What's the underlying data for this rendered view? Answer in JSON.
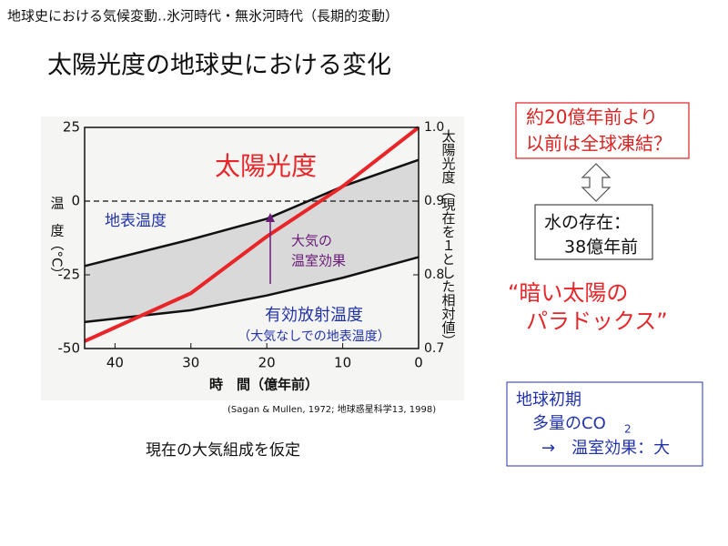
{
  "header": "地球史における気候変動‥氷河時代・無氷河時代（長期的変動）",
  "title": "太陽光度の地球史における変化",
  "chart_data": {
    "type": "line",
    "xlabel": "時　間（億年前）",
    "ylabel": "温　度（°C）",
    "y2label": "太陽光度（現在を１とした相対値）",
    "x": [
      44,
      30,
      20,
      10,
      0
    ],
    "xlim": [
      44,
      0
    ],
    "xticks": [
      40,
      30,
      20,
      10,
      0
    ],
    "ylim": [
      -50,
      25
    ],
    "yticks": [
      -50,
      -25,
      0,
      25
    ],
    "y2lim": [
      0.7,
      1.0
    ],
    "y2ticks": [
      0.7,
      0.8,
      0.9,
      {
        "value": 1,
        "label": "1.0"
      }
    ],
    "reference_line": 0,
    "series": [
      {
        "name": "地表温度",
        "color": "#111111",
        "values": [
          -22,
          -13,
          -6,
          5,
          14
        ]
      },
      {
        "name": "有効放射温度",
        "color": "#111111",
        "values": [
          -41,
          -37,
          -32,
          -26,
          -19
        ]
      },
      {
        "name": "太陽光度",
        "color": "#e8262a",
        "axis": "y2",
        "values": [
          0.71,
          0.775,
          0.852,
          0.92,
          1.0
        ]
      }
    ],
    "band_color": "#d9d9d9",
    "annotations": {
      "greenhouse": [
        "大気の",
        "温室効果"
      ],
      "no_atmosphere": "（大気なしでの地表温度）"
    },
    "source": "(Sagan & Mullen, 1972; 地球惑星科学13, 1998)"
  },
  "caption": "現在の大気組成を仮定",
  "snowball_box": [
    "約20億年前より",
    "以前は全球凍結？"
  ],
  "water_box": [
    "水の存在：",
    "38億年前"
  ],
  "paradox": [
    "“暗い太陽の",
    "パラドックス”"
  ],
  "early_earth_box": {
    "lines": [
      "地球初期",
      "多量のCO",
      "→　温室効果：大"
    ],
    "subscript": "2"
  }
}
